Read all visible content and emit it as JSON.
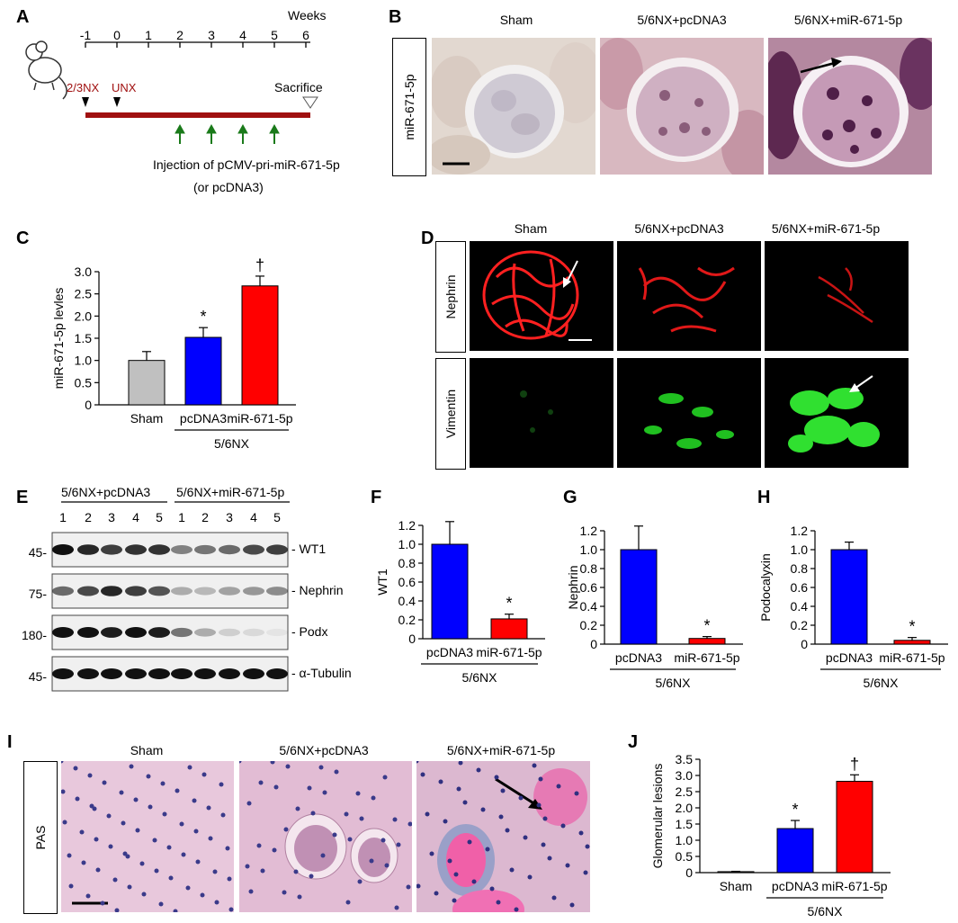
{
  "panels": {
    "A": {
      "label": "A",
      "weeks_label": "Weeks",
      "ticks": [
        "-1",
        "0",
        "1",
        "2",
        "3",
        "4",
        "5",
        "6"
      ],
      "event_nx": "2/3NX",
      "event_unx": "UNX",
      "event_sacrifice": "Sacrifice",
      "injection_line1": "Injection of pCMV-pri-miR-671-5p",
      "injection_line2": "(or pcDNA3)",
      "colors": {
        "timeline": "#a01010",
        "arrows": "#1a7a1a",
        "event_text": "#a01010"
      }
    },
    "B": {
      "label": "B",
      "row_label": "miR-671-5p",
      "columns": [
        "Sham",
        "5/6NX+pcDNA3",
        "5/6NX+miR-671-5p"
      ]
    },
    "D": {
      "label": "D",
      "rows": [
        "Nephrin",
        "Vimentin"
      ],
      "columns": [
        "Sham",
        "5/6NX+pcDNA3",
        "5/6NX+miR-671-5p"
      ]
    },
    "E": {
      "label": "E",
      "group1": "5/6NX+pcDNA3",
      "group2": "5/6NX+miR-671-5p",
      "lanes": [
        "1",
        "2",
        "3",
        "4",
        "5",
        "1",
        "2",
        "3",
        "4",
        "5"
      ],
      "markers": [
        "45-",
        "75-",
        "180-",
        "45-"
      ],
      "bands": [
        "WT1",
        "Nephrin",
        "Podx",
        "α-Tubulin"
      ]
    },
    "I": {
      "label": "I",
      "row_label": "PAS",
      "columns": [
        "Sham",
        "5/6NX+pcDNA3",
        "5/6NX+miR-671-5p"
      ]
    },
    "F": {
      "label": "F"
    },
    "G": {
      "label": "G"
    },
    "H": {
      "label": "H"
    },
    "J": {
      "label": "J"
    },
    "C": {
      "label": "C"
    }
  },
  "chart_data": [
    {
      "id": "C",
      "type": "bar",
      "categories": [
        "Sham",
        "pcDNA3",
        "miR-671-5p"
      ],
      "values": [
        1.0,
        1.52,
        2.68
      ],
      "errors": [
        0.2,
        0.22,
        0.22
      ],
      "annotations": [
        "",
        "*",
        "†"
      ],
      "colors": [
        "#c0c0c0",
        "#0000ff",
        "#ff0000"
      ],
      "ylabel": "miR-671-5p levles",
      "group_label": "5/6NX",
      "ylim": [
        0,
        3.0
      ],
      "yticks": [
        "0",
        "0.5",
        "1.0",
        "1.5",
        "2.0",
        "2.5",
        "3.0"
      ]
    },
    {
      "id": "F",
      "type": "bar",
      "categories": [
        "pcDNA3",
        "miR-671-5p"
      ],
      "values": [
        1.0,
        0.21
      ],
      "errors": [
        0.24,
        0.05
      ],
      "annotations": [
        "",
        "*"
      ],
      "colors": [
        "#0000ff",
        "#ff0000"
      ],
      "ylabel": "WT1",
      "group_label": "5/6NX",
      "ylim": [
        0,
        1.2
      ],
      "yticks": [
        "0",
        "0.2",
        "0.4",
        "0.6",
        "0.8",
        "1.0",
        "1.2"
      ]
    },
    {
      "id": "G",
      "type": "bar",
      "categories": [
        "pcDNA3",
        "miR-671-5p"
      ],
      "values": [
        1.0,
        0.06
      ],
      "errors": [
        0.25,
        0.02
      ],
      "annotations": [
        "",
        "*"
      ],
      "colors": [
        "#0000ff",
        "#ff0000"
      ],
      "ylabel": "Nephrin",
      "group_label": "5/6NX",
      "ylim": [
        0,
        1.2
      ],
      "yticks": [
        "0",
        "0.2",
        "0.4",
        "0.6",
        "0.8",
        "1.0",
        "1.2"
      ]
    },
    {
      "id": "H",
      "type": "bar",
      "categories": [
        "pcDNA3",
        "miR-671-5p"
      ],
      "values": [
        1.0,
        0.04
      ],
      "errors": [
        0.08,
        0.03
      ],
      "annotations": [
        "",
        "*"
      ],
      "colors": [
        "#0000ff",
        "#ff0000"
      ],
      "ylabel": "Podocalyxin",
      "group_label": "5/6NX",
      "ylim": [
        0,
        1.2
      ],
      "yticks": [
        "0",
        "0.2",
        "0.4",
        "0.6",
        "0.8",
        "1.0",
        "1.2"
      ]
    },
    {
      "id": "J",
      "type": "bar",
      "categories": [
        "Sham",
        "pcDNA3",
        "miR-671-5p"
      ],
      "values": [
        0.03,
        1.36,
        2.82
      ],
      "errors": [
        0.01,
        0.25,
        0.2
      ],
      "annotations": [
        "",
        "*",
        "†"
      ],
      "colors": [
        "#c0c0c0",
        "#0000ff",
        "#ff0000"
      ],
      "ylabel": "Glomerular lesions",
      "group_label": "5/6NX",
      "ylim": [
        0,
        3.5
      ],
      "yticks": [
        "0",
        "0.5",
        "1.0",
        "1.5",
        "2.0",
        "2.5",
        "3.0",
        "3.5"
      ]
    }
  ]
}
